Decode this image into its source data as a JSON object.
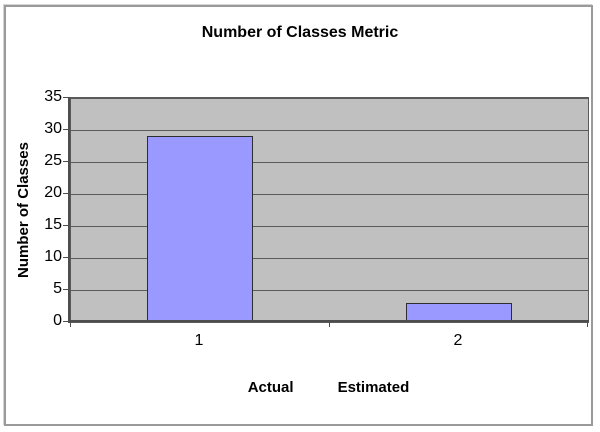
{
  "chart_data": {
    "type": "bar",
    "title": "Number of Classes Metric",
    "ylabel": "Number of Classes",
    "categories": [
      "1",
      "2"
    ],
    "values": [
      29,
      3
    ],
    "category_names": [
      "Actual",
      "Estimated"
    ],
    "yticks": [
      0,
      5,
      10,
      15,
      20,
      25,
      30,
      35
    ],
    "ylim": [
      0,
      35
    ],
    "grid": true,
    "legend_position": "none",
    "colors": {
      "plot_background": "#c0c0c0",
      "bar_fill": "#9999ff",
      "bar_border": "#2e2e2e",
      "gridline": "#5a5a5a",
      "axis": "#4d4d4d",
      "text": "#000000",
      "frame_border": "#9a9a9a"
    }
  }
}
